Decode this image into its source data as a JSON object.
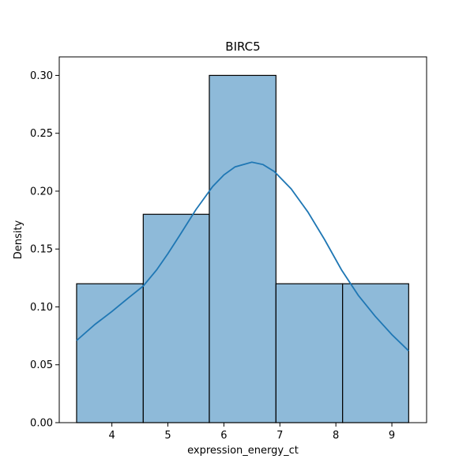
{
  "chart_data": {
    "type": "bar",
    "title": "BIRC5",
    "xlabel": "expression_energy_ct",
    "ylabel": "Density",
    "xlim": [
      3.06,
      9.62
    ],
    "ylim": [
      0,
      0.316
    ],
    "x_ticks": [
      4,
      5,
      6,
      7,
      8,
      9
    ],
    "y_ticks": [
      0.0,
      0.05,
      0.1,
      0.15,
      0.2,
      0.25,
      0.3
    ],
    "bins": [
      {
        "start": 3.37,
        "end": 4.56,
        "density": 0.12
      },
      {
        "start": 4.56,
        "end": 5.74,
        "density": 0.18
      },
      {
        "start": 5.74,
        "end": 6.93,
        "density": 0.3
      },
      {
        "start": 6.93,
        "end": 8.12,
        "density": 0.12
      },
      {
        "start": 8.12,
        "end": 9.3,
        "density": 0.12
      }
    ],
    "kde": {
      "x": [
        3.37,
        3.7,
        4.0,
        4.3,
        4.56,
        4.8,
        5.0,
        5.2,
        5.5,
        5.8,
        6.0,
        6.2,
        6.5,
        6.7,
        6.9,
        7.2,
        7.5,
        7.8,
        8.1,
        8.4,
        8.7,
        9.0,
        9.3
      ],
      "y": [
        0.071,
        0.085,
        0.096,
        0.108,
        0.118,
        0.132,
        0.146,
        0.161,
        0.184,
        0.204,
        0.214,
        0.221,
        0.225,
        0.223,
        0.217,
        0.202,
        0.182,
        0.158,
        0.132,
        0.11,
        0.092,
        0.076,
        0.062
      ]
    },
    "colors": {
      "bar_fill": "#8ebad9",
      "bar_edge": "#000000",
      "kde_line": "#1f77b4"
    },
    "grid": false,
    "legend": "none"
  }
}
